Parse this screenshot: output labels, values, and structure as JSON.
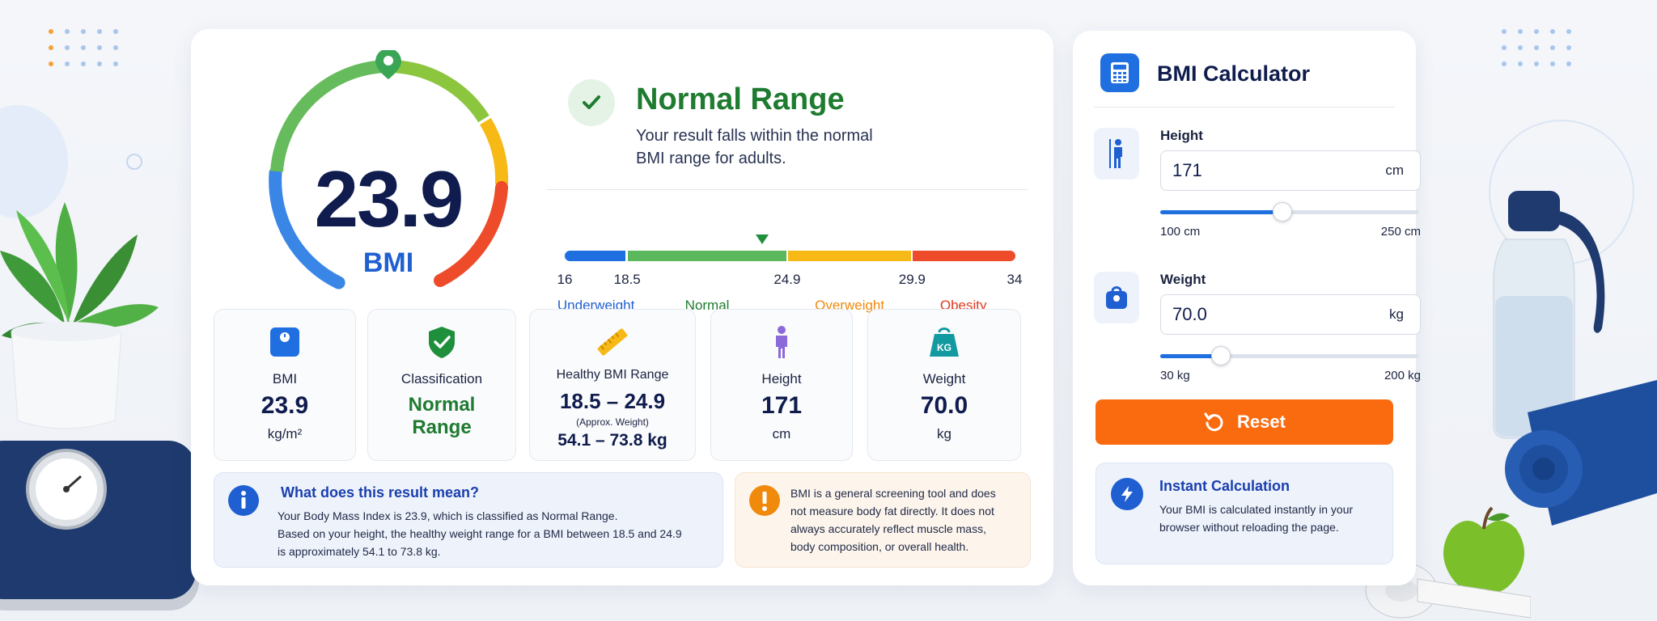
{
  "result": {
    "bmi_value": "23.9",
    "bmi_unit": "BMI",
    "bmi_numeric": 23.9,
    "classification_title": "Normal Range",
    "classification_desc": "Your result falls within the normal BMI range for adults."
  },
  "scale": {
    "min": 16,
    "max": 34,
    "ticks": [
      "16",
      "18.5",
      "24.9",
      "29.9",
      "34"
    ],
    "segments": [
      {
        "label": "Underweight",
        "from": 16,
        "to": 18.5,
        "color": "#1f6fe0"
      },
      {
        "label": "Normal",
        "from": 18.5,
        "to": 24.9,
        "color": "#5cb85c"
      },
      {
        "label": "Overweight",
        "from": 24.9,
        "to": 29.9,
        "color": "#f6b915"
      },
      {
        "label": "Obesity",
        "from": 29.9,
        "to": 34,
        "color": "#ee4b2b"
      }
    ],
    "label_colors": {
      "Underweight": "#1f5fd1",
      "Normal": "#1e7b2f",
      "Overweight": "#f08a0c",
      "Obesity": "#e03a1f"
    }
  },
  "tiles": [
    {
      "label": "BMI",
      "value": "23.9",
      "unit": "kg/m²",
      "icon": "scale-icon"
    },
    {
      "label": "Classification",
      "value": "Normal Range",
      "icon": "shield-check-icon"
    },
    {
      "label": "Healthy BMI Range",
      "value": "18.5 – 24.9",
      "note": "(Approx. Weight)",
      "extra": "54.1 – 73.8 kg",
      "icon": "ruler-icon"
    },
    {
      "label": "Height",
      "value": "171",
      "unit": "cm",
      "icon": "person-icon"
    },
    {
      "label": "Weight",
      "value": "70.0",
      "unit": "kg",
      "icon": "kg-weight-icon"
    }
  ],
  "info": {
    "title": "What does this result mean?",
    "line1": "Your Body Mass Index is 23.9, which is classified as Normal Range.",
    "line2": "Based on your height, the healthy weight range for a BMI between 18.5 and 24.9",
    "line3": "is approximately 54.1 to 73.8 kg."
  },
  "warning": {
    "line1": "BMI is a general screening tool and does",
    "line2": "not measure body fat directly. It does not",
    "line3": "always accurately reflect muscle mass,",
    "line4": "body composition, or overall health."
  },
  "calculator": {
    "title": "BMI Calculator",
    "height": {
      "label": "Height",
      "value": "171",
      "unit": "cm",
      "min_label": "100 cm",
      "max_label": "250 cm",
      "min": 100,
      "max": 250,
      "current": 171
    },
    "weight": {
      "label": "Weight",
      "value": "70.0",
      "unit": "kg",
      "min_label": "30 kg",
      "max_label": "200 kg",
      "min": 30,
      "max": 200,
      "current": 70
    },
    "reset_label": "Reset",
    "instant_title": "Instant Calculation",
    "instant_text": "Your BMI is calculated instantly in your browser without reloading the page."
  },
  "colors": {
    "accent": "#1f6fe0",
    "normal_green": "#1e7b2f",
    "reset_orange": "#fa6b10"
  }
}
